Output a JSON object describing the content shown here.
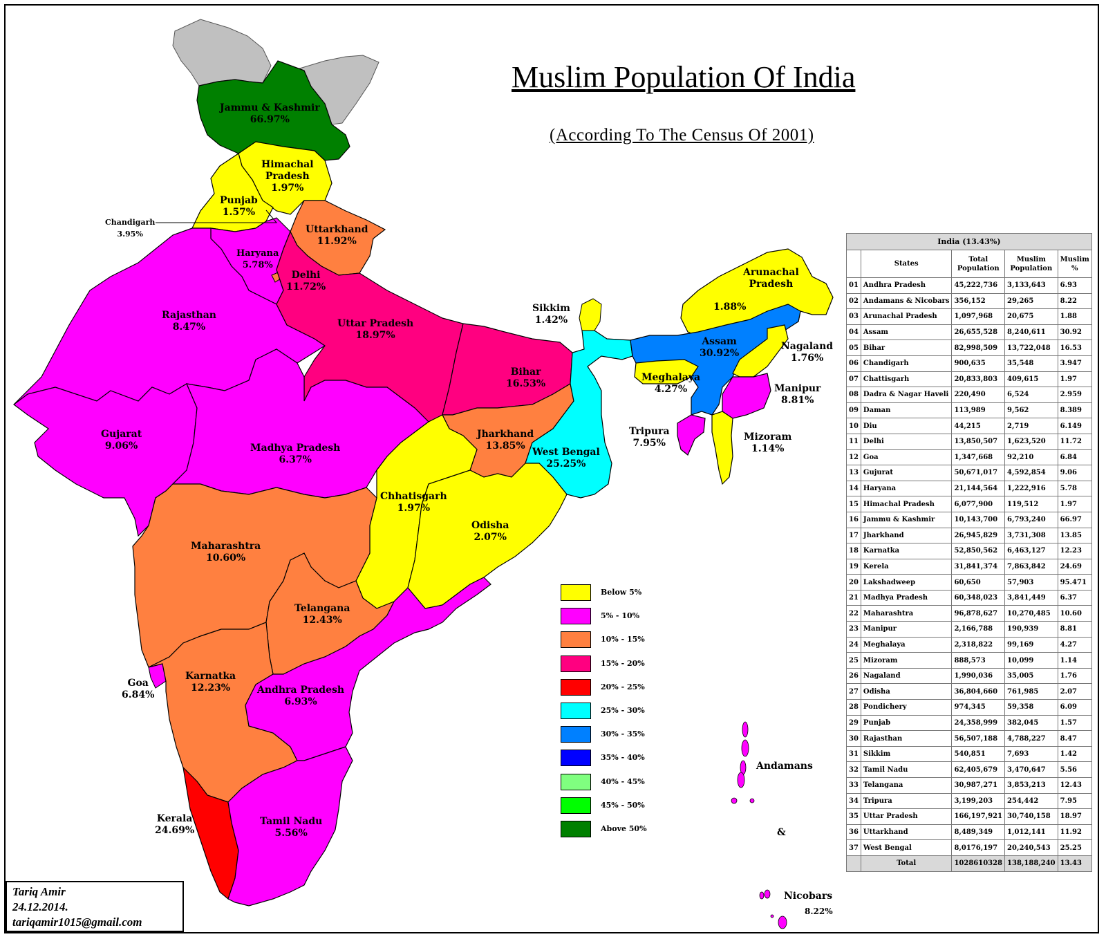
{
  "title": "Muslim Population Of India",
  "subtitle": "(According To The Census Of 2001)",
  "colors": {
    "below_5": "#ffff00",
    "5_10": "#ff00ff",
    "10_15": "#ff8040",
    "15_20": "#ff0080",
    "20_25": "#ff0000",
    "25_30": "#00ffff",
    "30_35": "#0080ff",
    "35_40": "#0000ff",
    "40_45": "#80ff80",
    "45_50": "#00ff00",
    "above_50": "#008000",
    "other": "#c0c0c0"
  },
  "regions": {
    "jk": {
      "name": "Jammu & Kashmir",
      "pct": "66.97%"
    },
    "hp": {
      "name": "Himachal Pradesh",
      "name1": "Himachal",
      "name2": "Pradesh",
      "pct": "1.97%"
    },
    "punjab": {
      "name": "Punjab",
      "pct": "1.57%"
    },
    "chandigarh": {
      "name": "Chandigarh",
      "pct": "3.95%"
    },
    "uk": {
      "name": "Uttarkhand",
      "pct": "11.92%"
    },
    "haryana": {
      "name": "Haryana",
      "pct": "5.78%"
    },
    "delhi": {
      "name": "Delhi",
      "pct": "11.72%"
    },
    "rajasthan": {
      "name": "Rajasthan",
      "pct": "8.47%"
    },
    "up": {
      "name": "Uttar Pradesh",
      "pct": "18.97%"
    },
    "bihar": {
      "name": "Bihar",
      "pct": "16.53%"
    },
    "sikkim": {
      "name": "Sikkim",
      "pct": "1.42%"
    },
    "arunachal": {
      "name1": "Arunachal",
      "name2": "Pradesh",
      "pct": "1.88%"
    },
    "assam": {
      "name": "Assam",
      "pct": "30.92%"
    },
    "nagaland": {
      "name": "Nagaland",
      "pct": "1.76%"
    },
    "meghalaya": {
      "name": "Meghalaya",
      "pct": "4.27%"
    },
    "manipur": {
      "name": "Manipur",
      "pct": "8.81%"
    },
    "tripura": {
      "name": "Tripura",
      "pct": "7.95%"
    },
    "mizoram": {
      "name": "Mizoram",
      "pct": "1.14%"
    },
    "gujarat": {
      "name": "Gujarat",
      "pct": "9.06%"
    },
    "mp": {
      "name": "Madhya Pradesh",
      "pct": "6.37%"
    },
    "jharkhand": {
      "name": "Jharkhand",
      "pct": "13.85%"
    },
    "wb": {
      "name": "West Bengal",
      "pct": "25.25%"
    },
    "chhattisgarh": {
      "name": "Chhatisgarh",
      "pct": "1.97%"
    },
    "odisha": {
      "name": "Odisha",
      "pct": "2.07%"
    },
    "maharashtra": {
      "name": "Maharashtra",
      "pct": "10.60%"
    },
    "telangana": {
      "name": "Telangana",
      "pct": "12.43%"
    },
    "goa": {
      "name": "Goa",
      "pct": "6.84%"
    },
    "karnataka": {
      "name": "Karnatka",
      "pct": "12.23%"
    },
    "ap": {
      "name": "Andhra Pradesh",
      "pct": "6.93%"
    },
    "kerala": {
      "name": "Kerala",
      "pct": "24.69%"
    },
    "tn": {
      "name": "Tamil Nadu",
      "pct": "5.56%"
    },
    "andamans": {
      "name": "Andamans",
      "amp": "&",
      "name2": "Nicobars",
      "pct": "8.22%"
    }
  },
  "legend": [
    {
      "label": "Below 5%",
      "color": "#ffff00"
    },
    {
      "label": "5% - 10%",
      "color": "#ff00ff"
    },
    {
      "label": "10% - 15%",
      "color": "#ff8040"
    },
    {
      "label": "15% - 20%",
      "color": "#ff0080"
    },
    {
      "label": "20% - 25%",
      "color": "#ff0000"
    },
    {
      "label": "25% - 30%",
      "color": "#00ffff"
    },
    {
      "label": "30% - 35%",
      "color": "#0080ff"
    },
    {
      "label": "35% - 40%",
      "color": "#0000ff"
    },
    {
      "label": "40% - 45%",
      "color": "#80ff80"
    },
    {
      "label": "45% - 50%",
      "color": "#00ff00"
    },
    {
      "label": "Above 50%",
      "color": "#008000"
    }
  ],
  "table": {
    "heading": "India  (13.43%)",
    "columns": [
      "States",
      "Total Population",
      "Muslim Population",
      "Muslim %"
    ],
    "rows": [
      [
        "01",
        "Andhra Pradesh",
        "45,222,736",
        "3,133,643",
        "6.93"
      ],
      [
        "02",
        "Andamans & Nicobars",
        "356,152",
        "29,265",
        "8.22"
      ],
      [
        "03",
        "Arunachal Pradesh",
        "1,097,968",
        "20,675",
        "1.88"
      ],
      [
        "04",
        "Assam",
        "26,655,528",
        "8,240,611",
        "30.92"
      ],
      [
        "05",
        "Bihar",
        "82,998,509",
        "13,722,048",
        "16.53"
      ],
      [
        "06",
        "Chandigarh",
        "900,635",
        "35,548",
        "3.947"
      ],
      [
        "07",
        "Chattisgarh",
        "20,833,803",
        "409,615",
        "1.97"
      ],
      [
        "08",
        "Dadra & Nagar Haveli",
        "220,490",
        "6,524",
        "2.959"
      ],
      [
        "09",
        "Daman",
        "113,989",
        "9,562",
        "8.389"
      ],
      [
        "10",
        "Diu",
        "44,215",
        "2,719",
        "6.149"
      ],
      [
        "11",
        "Delhi",
        "13,850,507",
        "1,623,520",
        "11.72"
      ],
      [
        "12",
        "Goa",
        "1,347,668",
        "92,210",
        "6.84"
      ],
      [
        "13",
        "Gujurat",
        "50,671,017",
        "4,592,854",
        "9.06"
      ],
      [
        "14",
        "Haryana",
        "21,144,564",
        "1,222,916",
        "5.78"
      ],
      [
        "15",
        "Himachal Pradesh",
        "6,077,900",
        "119,512",
        "1.97"
      ],
      [
        "16",
        "Jammu & Kashmir",
        "10,143,700",
        "6,793,240",
        "66.97"
      ],
      [
        "17",
        "Jharkhand",
        "26,945,829",
        "3,731,308",
        "13.85"
      ],
      [
        "18",
        "Karnatka",
        "52,850,562",
        "6,463,127",
        "12.23"
      ],
      [
        "19",
        "Kerela",
        "31,841,374",
        "7,863,842",
        "24.69"
      ],
      [
        "20",
        "Lakshadweep",
        "60,650",
        "57,903",
        "95.471"
      ],
      [
        "21",
        "Madhya Pradesh",
        "60,348,023",
        "3,841,449",
        "6.37"
      ],
      [
        "22",
        "Maharashtra",
        "96,878,627",
        "10,270,485",
        "10.60"
      ],
      [
        "23",
        "Manipur",
        "2,166,788",
        "190,939",
        "8.81"
      ],
      [
        "24",
        "Meghalaya",
        "2,318,822",
        "99,169",
        "4.27"
      ],
      [
        "25",
        "Mizoram",
        "888,573",
        "10,099",
        "1.14"
      ],
      [
        "26",
        "Nagaland",
        "1,990,036",
        "35,005",
        "1.76"
      ],
      [
        "27",
        "Odisha",
        "36,804,660",
        "761,985",
        "2.07"
      ],
      [
        "28",
        "Pondichery",
        "974,345",
        "59,358",
        "6.09"
      ],
      [
        "29",
        "Punjab",
        "24,358,999",
        "382,045",
        "1.57"
      ],
      [
        "30",
        "Rajasthan",
        "56,507,188",
        "4,788,227",
        "8.47"
      ],
      [
        "31",
        "Sikkim",
        "540,851",
        "7,693",
        "1.42"
      ],
      [
        "32",
        "Tamil Nadu",
        "62,405,679",
        "3,470,647",
        "5.56"
      ],
      [
        "33",
        "Telangana",
        "30,987,271",
        "3,853,213",
        "12.43"
      ],
      [
        "34",
        "Tripura",
        "3,199,203",
        "254,442",
        "7.95"
      ],
      [
        "35",
        "Uttar Pradesh",
        "166,197,921",
        "30,740,158",
        "18.97"
      ],
      [
        "36",
        "Uttarkhand",
        "8,489,349",
        "1,012,141",
        "11.92"
      ],
      [
        "37",
        "West Bengal",
        "8,0176,197",
        "20,240,543",
        "25.25"
      ]
    ],
    "total": [
      "Total",
      "1028610328",
      "138,188,240",
      "13.43"
    ]
  },
  "credit": {
    "name": "Tariq Amir",
    "date": "24.12.2014.",
    "email": "tariqamir1015@gmail.com"
  }
}
